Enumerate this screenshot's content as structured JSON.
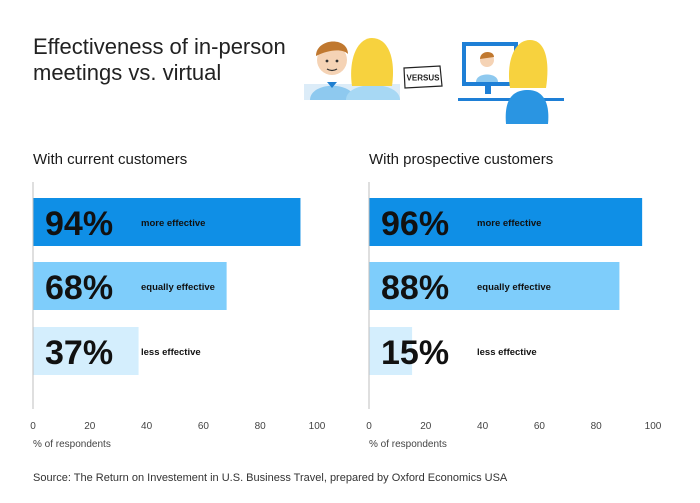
{
  "title_lines": [
    "Effectiveness of in-person",
    "meetings vs. virtual"
  ],
  "illustration": {
    "badge_text": "VERSUS",
    "left": "two-people-icon",
    "right": "video-call-icon"
  },
  "colors": {
    "more": "#0f8fe6",
    "equally": "#7ecdfb",
    "less": "#d4eefd",
    "axis": "#bfbfbf"
  },
  "chart_data": [
    {
      "type": "bar",
      "orientation": "horizontal",
      "title": "With current customers",
      "categories": [
        "more effective",
        "equally effective",
        "less effective"
      ],
      "values": [
        94,
        68,
        37
      ],
      "value_labels": [
        "94%",
        "68%",
        "37%"
      ],
      "xlabel": "% of respondents",
      "xlim": [
        0,
        100
      ],
      "xticks": [
        "0",
        "20",
        "40",
        "60",
        "80",
        "100"
      ],
      "grid": false
    },
    {
      "type": "bar",
      "orientation": "horizontal",
      "title": "With prospective customers",
      "categories": [
        "more effective",
        "equally effective",
        "less effective"
      ],
      "values": [
        96,
        88,
        15
      ],
      "value_labels": [
        "96%",
        "88%",
        "15%"
      ],
      "xlabel": "% of respondents",
      "xlim": [
        0,
        100
      ],
      "xticks": [
        "0",
        "20",
        "40",
        "60",
        "80",
        "100"
      ],
      "grid": false
    }
  ],
  "source": "Source: The Return on Investement in U.S. Business Travel, prepared by Oxford Economics USA"
}
